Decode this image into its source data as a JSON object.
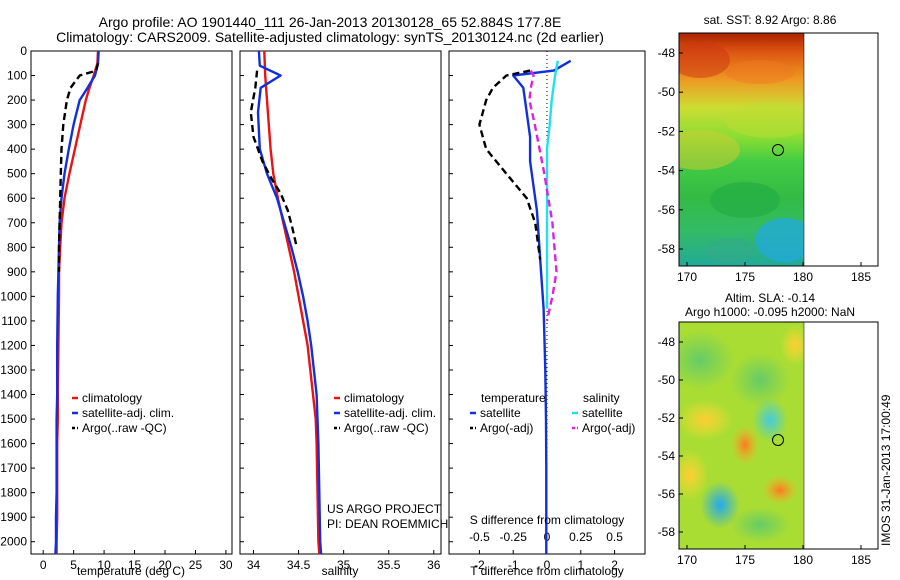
{
  "header": {
    "line1": "Argo profile: AO 1901440_111 26-Jan-2013 20130128_65 52.884S 177.8E",
    "line2": "Climatology: CARS2009. Satellite-adjusted climatology: synTS_20130124.nc (2d earlier)"
  },
  "colors": {
    "climatology": "#ee1111",
    "satellite": "#1030dd",
    "argo": "#000000",
    "satellite_salinity": "#22e0ee",
    "argo_salinity": "#dd22dd"
  },
  "chart_data": [
    {
      "type": "line",
      "xlabel": "temperature (deg C)",
      "ylabel": "",
      "xlim": [
        -2,
        31
      ],
      "ylim": [
        2050,
        0
      ],
      "xticks": [
        0,
        5,
        10,
        15,
        20,
        25,
        30
      ],
      "xtick_labels": [
        "0",
        "5",
        "10",
        "15",
        "20",
        "25",
        "30"
      ],
      "yticks": [
        0,
        100,
        200,
        300,
        400,
        500,
        600,
        700,
        800,
        900,
        1000,
        1100,
        1200,
        1300,
        1400,
        1500,
        1600,
        1700,
        1800,
        1900,
        2000
      ],
      "ytick_labels": [
        "0",
        "100",
        "200",
        "300",
        "400",
        "500",
        "600",
        "700",
        "800",
        "900",
        "1000",
        "1100",
        "1200",
        "1300",
        "1400",
        "1500",
        "1600",
        "1700",
        "1800",
        "1900",
        "2000"
      ],
      "legend": [
        "climatology",
        "satellite-adj. clim.",
        "Argo(..raw -QC)"
      ],
      "series": [
        {
          "name": "climatology",
          "style": "solid",
          "x": [
            9.0,
            8.9,
            8.3,
            7.6,
            7.0,
            6.1,
            5.2,
            4.3,
            3.5,
            3.0,
            2.8,
            2.6,
            2.6,
            2.5,
            2.4,
            2.4,
            2.3,
            2.3,
            2.3,
            2.2,
            2.2
          ],
          "y": [
            0,
            50,
            100,
            150,
            200,
            300,
            400,
            500,
            600,
            700,
            800,
            900,
            1000,
            1200,
            1400,
            1500,
            1600,
            1800,
            1900,
            2000,
            2050
          ]
        },
        {
          "name": "satellite-adj. clim.",
          "style": "solid",
          "x": [
            9.1,
            9.0,
            8.5,
            7.3,
            6.0,
            5.0,
            4.2,
            3.5,
            3.0,
            2.7,
            2.6,
            2.5,
            2.4,
            2.3,
            2.3,
            2.2,
            2.2,
            2.2,
            2.1,
            2.1,
            2.0
          ],
          "y": [
            0,
            50,
            100,
            150,
            200,
            300,
            400,
            500,
            600,
            700,
            800,
            900,
            1000,
            1200,
            1400,
            1500,
            1600,
            1800,
            1900,
            2000,
            2050
          ]
        },
        {
          "name": "Argo(..raw -QC)",
          "style": "dashed",
          "x": [
            9.0,
            8.7,
            6.0,
            4.5,
            3.9,
            3.3,
            3.0,
            2.9,
            2.8,
            2.7,
            2.6,
            2.6
          ],
          "y": [
            50,
            80,
            100,
            150,
            200,
            300,
            400,
            500,
            600,
            700,
            800,
            900
          ]
        }
      ],
      "annotations": []
    },
    {
      "type": "line",
      "xlabel": "salinity",
      "ylabel": "",
      "xlim": [
        33.85,
        36.08
      ],
      "ylim": [
        2050,
        0
      ],
      "xticks": [
        34,
        34.5,
        35,
        35.5,
        36
      ],
      "xtick_labels": [
        "34",
        "34.5",
        "35",
        "35.5",
        "36"
      ],
      "legend": [
        "climatology",
        "satellite-adj. clim.",
        "Argo(..raw -QC)"
      ],
      "series": [
        {
          "name": "climatology",
          "style": "solid",
          "x": [
            34.12,
            34.13,
            34.15,
            34.17,
            34.19,
            34.22,
            34.27,
            34.33,
            34.39,
            34.45,
            34.5,
            34.55,
            34.6,
            34.63,
            34.66,
            34.69,
            34.7,
            34.71,
            34.72,
            34.73
          ],
          "y": [
            0,
            100,
            200,
            300,
            400,
            500,
            600,
            700,
            800,
            900,
            1000,
            1100,
            1200,
            1300,
            1400,
            1500,
            1600,
            1800,
            2000,
            2050
          ]
        },
        {
          "name": "satellite-adj. clim.",
          "style": "solid",
          "x": [
            34.06,
            34.07,
            34.3,
            34.08,
            34.05,
            34.07,
            34.15,
            34.26,
            34.34,
            34.42,
            34.49,
            34.55,
            34.6,
            34.64,
            34.67,
            34.7,
            34.72,
            34.73,
            34.74,
            34.75
          ],
          "y": [
            0,
            60,
            100,
            150,
            250,
            400,
            500,
            600,
            700,
            800,
            900,
            1000,
            1100,
            1200,
            1300,
            1400,
            1600,
            1800,
            2000,
            2050
          ]
        },
        {
          "name": "Argo(..raw -QC)",
          "style": "dashed",
          "x": [
            34.04,
            34.02,
            33.97,
            34.0,
            34.1,
            34.2,
            34.3,
            34.38,
            34.43,
            34.48
          ],
          "y": [
            80,
            150,
            250,
            350,
            450,
            520,
            580,
            650,
            720,
            800
          ]
        }
      ],
      "annotations": [
        "US ARGO PROJECT",
        "PI: DEAN ROEMMICH"
      ]
    },
    {
      "type": "line",
      "xlabel": "T difference from climatology",
      "xlabel2": "S difference from climatology",
      "xlim": [
        -2.9,
        2.9
      ],
      "ylim": [
        2050,
        0
      ],
      "xticks": [
        -2,
        -1,
        0,
        1,
        2
      ],
      "xtick_labels": [
        "-2",
        "-1",
        "0",
        "1",
        "2"
      ],
      "xticks2": [
        -0.5,
        -0.25,
        0,
        0.25,
        0.5
      ],
      "xtick2_labels": [
        "-0.5",
        "-0.25",
        "0",
        "0.25",
        "0.5"
      ],
      "legend_headers": [
        "temperature",
        "salinity"
      ],
      "legend": [
        "satellite",
        "Argo(-adj)",
        "satellite",
        "Argo(-adj)"
      ],
      "series": [
        {
          "name": "satellite",
          "group": "temperature",
          "style": "solid",
          "x": [
            0.7,
            0.2,
            -1.0,
            -0.7,
            -0.6,
            -0.5,
            -0.5,
            -0.4,
            -0.3,
            -0.25,
            -0.2,
            -0.15,
            -0.1,
            -0.08,
            -0.05,
            -0.03,
            -0.02,
            -0.02,
            -0.02,
            -0.02
          ],
          "y": [
            40,
            80,
            100,
            150,
            250,
            350,
            450,
            550,
            650,
            750,
            850,
            950,
            1050,
            1150,
            1300,
            1500,
            1700,
            1900,
            2000,
            2050
          ]
        },
        {
          "name": "Argo(-adj)",
          "group": "temperature",
          "style": "dashed",
          "x": [
            -0.5,
            -1.2,
            -1.6,
            -1.8,
            -2.0,
            -1.8,
            -1.2,
            -0.6,
            -0.35,
            -0.2
          ],
          "y": [
            80,
            100,
            150,
            200,
            300,
            400,
            500,
            600,
            700,
            850
          ]
        },
        {
          "name": "satellite",
          "group": "salinity",
          "style": "solid",
          "x": [
            0.08,
            0.06,
            0.035,
            0.02,
            0.0,
            0.0,
            0.0,
            0.0,
            0.0,
            0.0,
            0.0,
            0.0
          ],
          "y": [
            40,
            100,
            200,
            300,
            400,
            500,
            600,
            700,
            800,
            900,
            1000,
            1050
          ]
        },
        {
          "name": "Argo(-adj)",
          "group": "salinity",
          "style": "dashed",
          "x": [
            -0.12,
            -0.1,
            -0.12,
            -0.13,
            -0.09,
            -0.02,
            0.04,
            0.07,
            0.04,
            0.0
          ],
          "y": [
            80,
            100,
            150,
            200,
            300,
            500,
            700,
            900,
            1000,
            1100
          ]
        }
      ]
    }
  ],
  "maps": [
    {
      "title": "sat. SST: 8.92  Argo: 8.86",
      "xticks": [
        "170",
        "175",
        "180",
        "185"
      ],
      "yticks": [
        "-48",
        "-50",
        "-52",
        "-54",
        "-56",
        "-58"
      ]
    },
    {
      "title_line1": "Altim. SLA: -0.14",
      "title_line2": "Argo h1000: -0.095  h2000: NaN",
      "xticks": [
        "170",
        "175",
        "180",
        "185"
      ],
      "yticks": [
        "-48",
        "-50",
        "-52",
        "-54",
        "-56",
        "-58"
      ]
    }
  ],
  "side_label": "IMOS 31-Jan-2013 17:00:49"
}
